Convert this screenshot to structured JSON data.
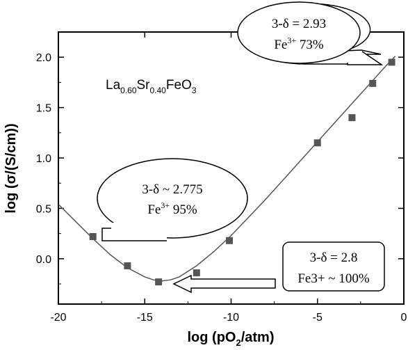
{
  "chart_data": {
    "type": "scatter",
    "xlabel_main": "log (pO",
    "xlabel_sub": "2",
    "xlabel_tail": "/atm)",
    "ylabel": "log (σ/(S/cm))",
    "xlim": [
      -20,
      0
    ],
    "ylim": [
      -0.45,
      2.25
    ],
    "xticks": [
      -20,
      -15,
      -10,
      -5,
      0
    ],
    "xtick_labels": [
      "-20",
      "-15",
      "-10",
      "-5",
      "0"
    ],
    "yticks": [
      0.0,
      0.5,
      1.0,
      1.5,
      2.0
    ],
    "ytick_labels": [
      "0.0",
      "0.5",
      "1.0",
      "1.5",
      "2.0"
    ],
    "points": {
      "x": [
        -18.0,
        -16.0,
        -14.2,
        -12.0,
        -10.1,
        -5.0,
        -3.0,
        -1.8,
        -0.7
      ],
      "y": [
        0.22,
        -0.07,
        -0.23,
        -0.14,
        0.18,
        1.15,
        1.4,
        1.74,
        1.95
      ]
    },
    "fit_curve": {
      "x": [
        -20,
        -19,
        -18,
        -17,
        -16,
        -15,
        -14.5,
        -14,
        -13.5,
        -13,
        -12,
        -11,
        -10,
        -9,
        -8,
        -7,
        -6,
        -5,
        -4,
        -3,
        -2,
        -1,
        -0.5
      ],
      "y": [
        0.54,
        0.37,
        0.2,
        0.04,
        -0.09,
        -0.18,
        -0.21,
        -0.22,
        -0.21,
        -0.18,
        -0.07,
        0.07,
        0.23,
        0.41,
        0.59,
        0.78,
        0.97,
        1.16,
        1.35,
        1.54,
        1.73,
        1.92,
        2.01
      ]
    },
    "compound": {
      "parts": [
        {
          "text": "La",
          "sub": false
        },
        {
          "text": "0.60",
          "sub": true
        },
        {
          "text": "Sr",
          "sub": false
        },
        {
          "text": "0.40",
          "sub": true
        },
        {
          "text": "FeO",
          "sub": false
        },
        {
          "text": "3",
          "sub": true
        }
      ]
    },
    "annotations": {
      "top": {
        "line1": "3-δ = 2.93",
        "line2_base": "Fe",
        "line2_sup": "3+",
        "line2_tail": " 73%"
      },
      "left": {
        "line1": "3-δ ~ 2.775",
        "line2_base": "Fe",
        "line2_sup": "3+",
        "line2_tail": " 95%"
      },
      "box": {
        "line1": "3-δ = 2.8",
        "line2": "Fe3+ ~ 100%"
      }
    },
    "colors": {
      "marker": "#555555",
      "line": "#555555",
      "axis": "#000000"
    }
  }
}
